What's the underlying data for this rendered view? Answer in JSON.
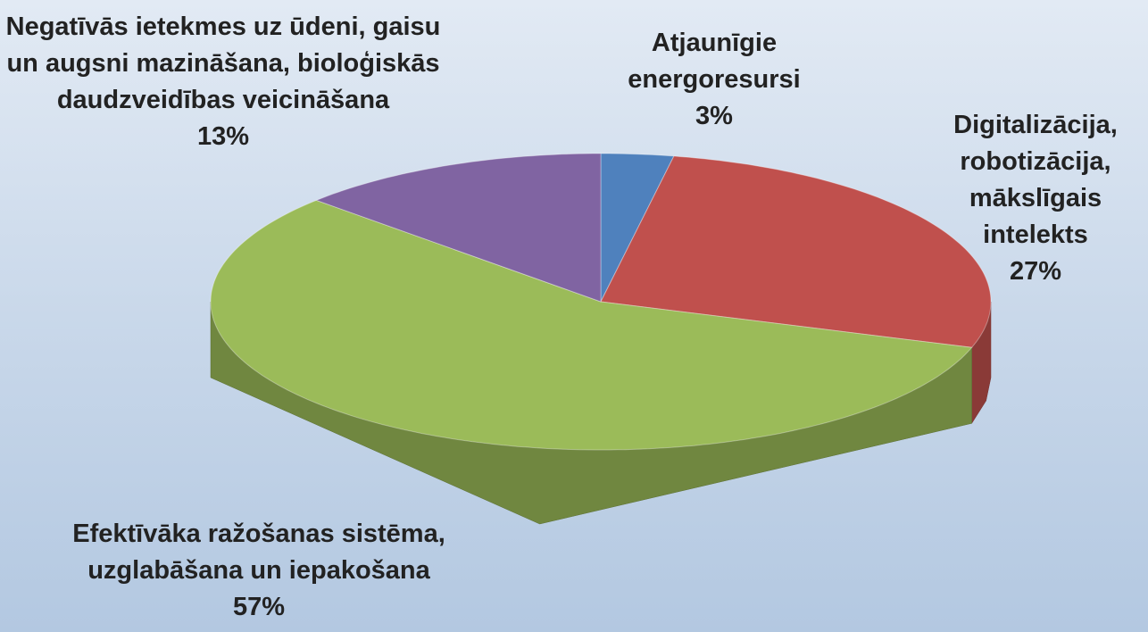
{
  "chart_data": {
    "type": "pie",
    "categories": [
      "Atjaunīgie energoresursi",
      "Digitalizācija, robotizācija, mākslīgais intelekts",
      "Efektīvāka ražošanas sistēma, uzglabāšana un iepakošana",
      "Negatīvās ietekmes uz ūdeni, gaisu un augsni mazināšana, bioloģiskās daudzveidības veicināšana"
    ],
    "values": [
      3,
      27,
      57,
      13
    ],
    "value_labels": [
      "3%",
      "27%",
      "57%",
      "13%"
    ],
    "colors": [
      "#4f81bd",
      "#c0504d",
      "#9bbb59",
      "#8064a2"
    ]
  }
}
